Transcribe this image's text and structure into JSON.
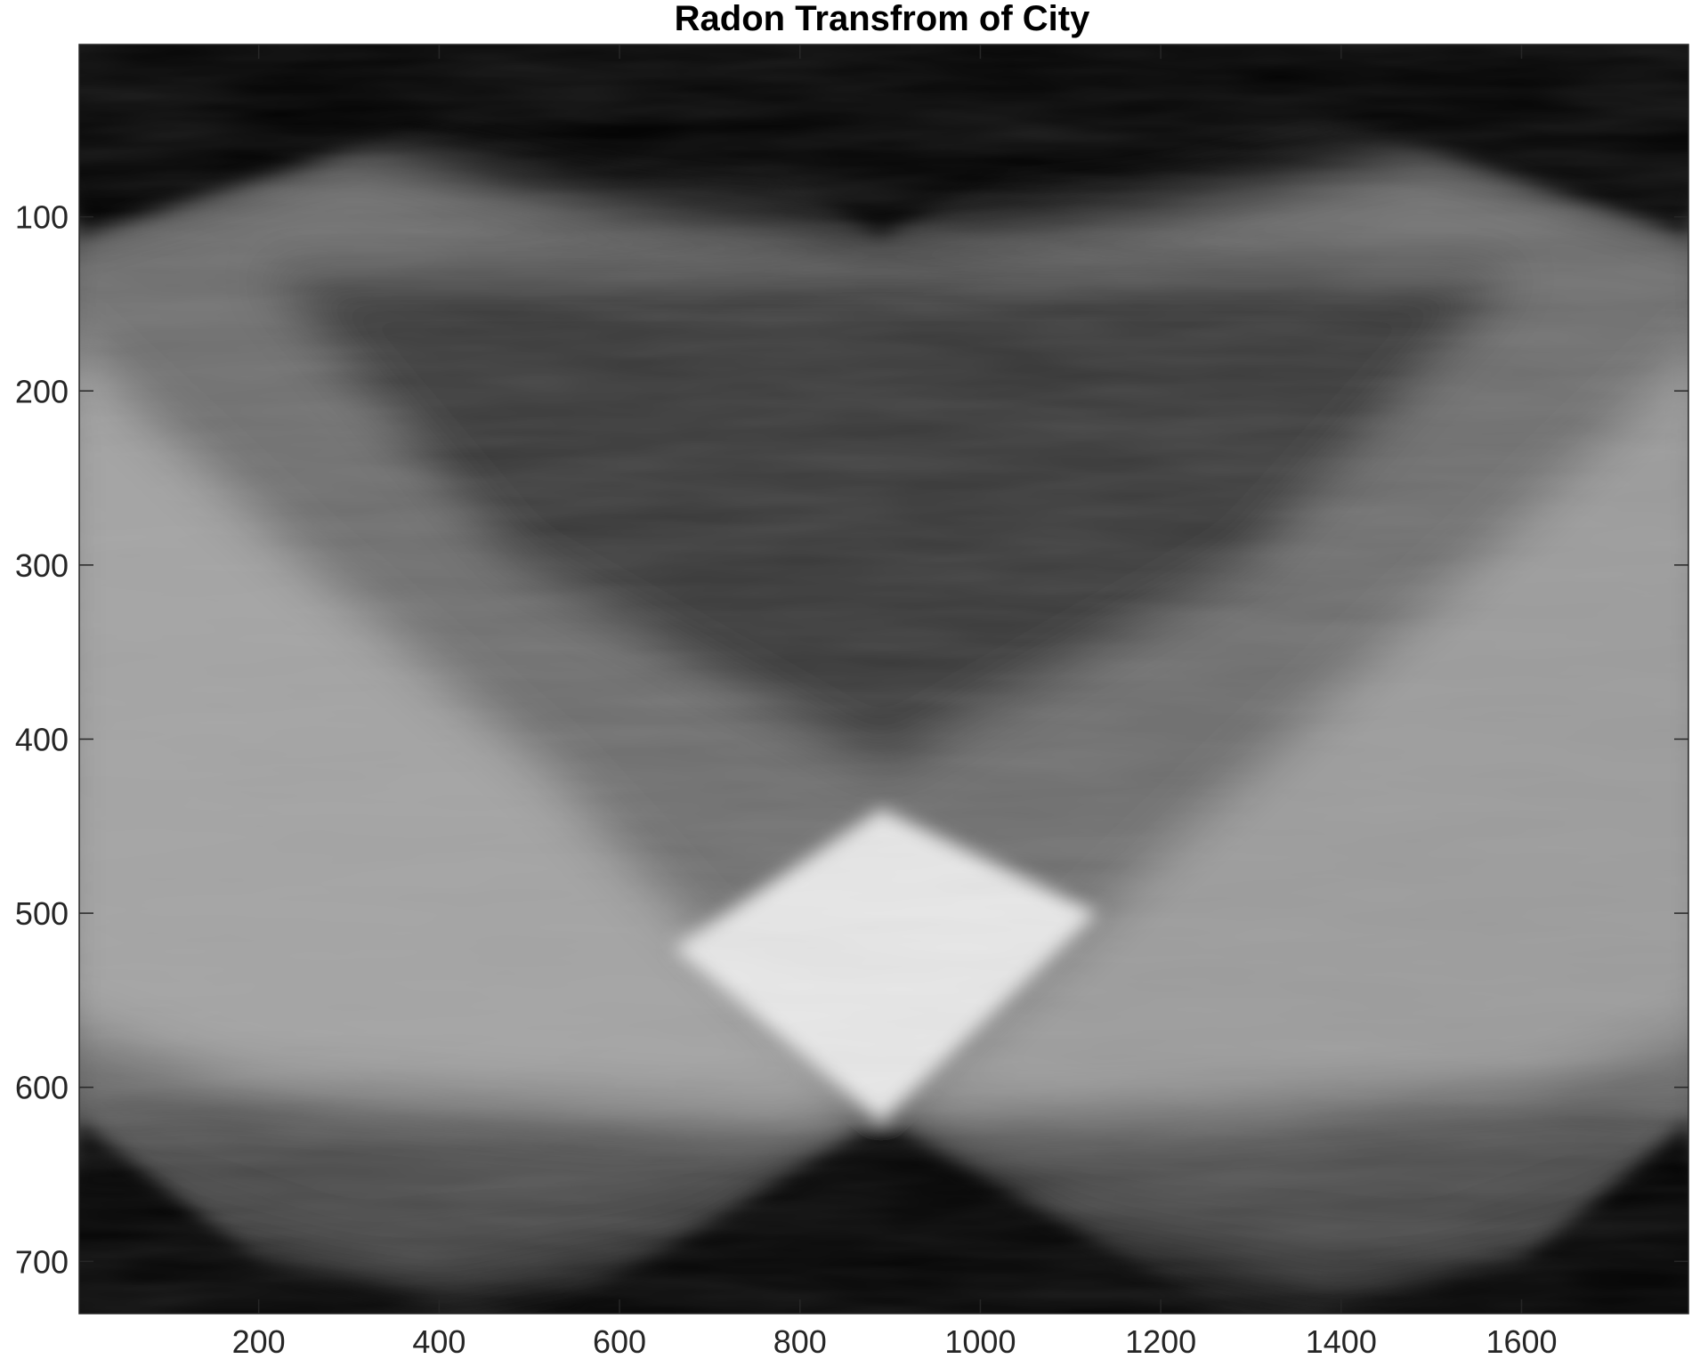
{
  "chart_data": {
    "type": "heatmap",
    "title": "Radon Transfrom of City",
    "xlabel": "",
    "ylabel": "",
    "colormap": "gray",
    "xlim": [
      1,
      1785
    ],
    "ylim": [
      1,
      730
    ],
    "y_reversed": true,
    "x_ticks": [
      200,
      400,
      600,
      800,
      1000,
      1200,
      1400,
      1600
    ],
    "x_tick_labels": [
      "200",
      "400",
      "600",
      "800",
      "1000",
      "1200",
      "1400",
      "1600"
    ],
    "y_ticks": [
      100,
      200,
      300,
      400,
      500,
      600,
      700
    ],
    "y_tick_labels": [
      "100",
      "200",
      "300",
      "400",
      "500",
      "600",
      "700"
    ],
    "grid": false,
    "features": {
      "upper_apexes": [
        [
          1,
          110
        ],
        [
          890,
          110
        ],
        [
          1785,
          110
        ]
      ],
      "lower_apexes": [
        [
          1,
          620
        ],
        [
          890,
          620
        ],
        [
          1785,
          620
        ]
      ],
      "bright_diamond": {
        "top": [
          890,
          440
        ],
        "left": [
          660,
          520
        ],
        "right": [
          1130,
          500
        ],
        "bottom": [
          890,
          620
        ]
      }
    }
  }
}
